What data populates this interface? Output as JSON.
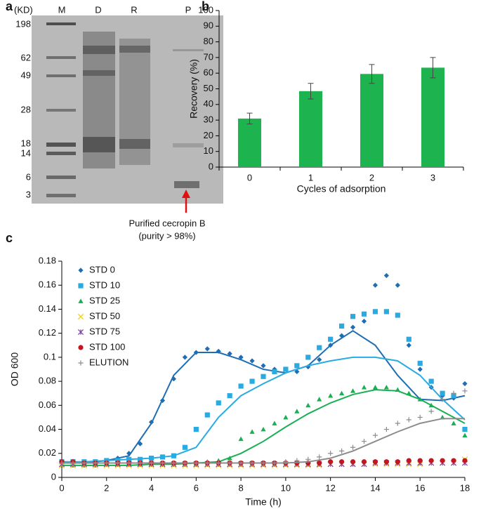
{
  "gel": {
    "panel_label": "a",
    "unit": "(KD)",
    "lanes": [
      "M",
      "D",
      "R",
      "P"
    ],
    "markers": [
      198,
      62,
      49,
      28,
      18,
      14,
      6,
      3
    ],
    "annotation": [
      "Purified cecropin B",
      "(purity > 98%)"
    ]
  },
  "chart_data": [
    {
      "type": "bar",
      "panel_label": "b",
      "xlabel": "Cycles of adsorption",
      "ylabel": "Recovery (%)",
      "categories": [
        "0",
        "1",
        "2",
        "3"
      ],
      "values": [
        31,
        48.5,
        59.5,
        63.5
      ],
      "errors": [
        3.5,
        5,
        6,
        6.5
      ],
      "color": "#1db34f",
      "ylim": [
        0,
        100
      ],
      "yticks": [
        0,
        10,
        20,
        30,
        40,
        50,
        60,
        70,
        80,
        90,
        100
      ]
    },
    {
      "type": "scatter",
      "panel_label": "c",
      "xlabel": "Time (h)",
      "ylabel": "OD 600",
      "xlim": [
        0,
        18
      ],
      "xticks": [
        0,
        2,
        4,
        6,
        8,
        10,
        12,
        14,
        16,
        18
      ],
      "ylim": [
        0,
        0.18
      ],
      "yticks": [
        0,
        0.02,
        0.04,
        0.06,
        0.08,
        0.1,
        0.12,
        0.14,
        0.16,
        0.18
      ],
      "legend": "upper left",
      "x": [
        0,
        0.5,
        1,
        1.5,
        2,
        2.5,
        3,
        3.5,
        4,
        4.5,
        5,
        5.5,
        6,
        6.5,
        7,
        7.5,
        8,
        8.5,
        9,
        9.5,
        10,
        10.5,
        11,
        11.5,
        12,
        12.5,
        13,
        13.5,
        14,
        14.5,
        15,
        15.5,
        16,
        16.5,
        17,
        17.5,
        18
      ],
      "trend_x": [
        0,
        1,
        2,
        3,
        4,
        5,
        6,
        7,
        8,
        9,
        10,
        11,
        12,
        13,
        14,
        15,
        16,
        17,
        18
      ],
      "series": [
        {
          "name": "STD 0",
          "color": "#1f6db3",
          "marker": "diamond",
          "values": [
            0.012,
            0.012,
            0.012,
            0.013,
            0.014,
            0.016,
            0.02,
            0.028,
            0.046,
            0.064,
            0.082,
            0.1,
            0.104,
            0.107,
            0.105,
            0.103,
            0.1,
            0.097,
            0.093,
            0.09,
            0.09,
            0.088,
            0.092,
            0.098,
            0.11,
            0.118,
            0.125,
            0.13,
            0.16,
            0.168,
            0.16,
            0.11,
            0.09,
            0.075,
            0.068,
            0.066,
            0.078
          ],
          "trend": [
            0.012,
            0.012,
            0.014,
            0.018,
            0.045,
            0.085,
            0.104,
            0.104,
            0.098,
            0.09,
            0.087,
            0.093,
            0.11,
            0.122,
            0.11,
            0.085,
            0.065,
            0.064,
            0.068
          ]
        },
        {
          "name": "STD 10",
          "color": "#29abe2",
          "marker": "square",
          "values": [
            0.013,
            0.013,
            0.013,
            0.013,
            0.014,
            0.014,
            0.015,
            0.015,
            0.016,
            0.017,
            0.018,
            0.025,
            0.04,
            0.052,
            0.062,
            0.068,
            0.076,
            0.08,
            0.084,
            0.088,
            0.09,
            0.093,
            0.1,
            0.108,
            0.115,
            0.126,
            0.134,
            0.136,
            0.138,
            0.138,
            0.135,
            0.115,
            0.095,
            0.08,
            0.07,
            0.068,
            0.04
          ],
          "trend": [
            0.013,
            0.013,
            0.014,
            0.015,
            0.016,
            0.018,
            0.025,
            0.05,
            0.068,
            0.078,
            0.087,
            0.093,
            0.097,
            0.1,
            0.1,
            0.097,
            0.085,
            0.065,
            0.048
          ]
        },
        {
          "name": "STD 25",
          "color": "#1aaf54",
          "marker": "triangle",
          "values": [
            0.01,
            0.01,
            0.01,
            0.01,
            0.011,
            0.011,
            0.011,
            0.011,
            0.011,
            0.011,
            0.012,
            0.012,
            0.012,
            0.013,
            0.014,
            0.016,
            0.032,
            0.038,
            0.04,
            0.045,
            0.05,
            0.055,
            0.06,
            0.065,
            0.068,
            0.07,
            0.072,
            0.075,
            0.075,
            0.075,
            0.073,
            0.07,
            0.065,
            0.06,
            0.05,
            0.045,
            0.035
          ],
          "trend": [
            0.01,
            0.01,
            0.01,
            0.01,
            0.011,
            0.011,
            0.012,
            0.013,
            0.02,
            0.03,
            0.042,
            0.053,
            0.062,
            0.069,
            0.073,
            0.072,
            0.065,
            0.055,
            0.045
          ]
        },
        {
          "name": "STD 50",
          "color": "#f2d216",
          "marker": "x",
          "values": [
            0.01,
            0.01,
            0.01,
            0.01,
            0.01,
            0.01,
            0.01,
            0.01,
            0.01,
            0.01,
            0.01,
            0.01,
            0.01,
            0.01,
            0.01,
            0.01,
            0.01,
            0.01,
            0.01,
            0.01,
            0.01,
            0.01,
            0.01,
            0.01,
            0.011,
            0.011,
            0.011,
            0.011,
            0.011,
            0.011,
            0.011,
            0.011,
            0.011,
            0.012,
            0.012,
            0.012,
            0.015
          ]
        },
        {
          "name": "STD 75",
          "color": "#7a3fa0",
          "marker": "star",
          "values": [
            0.011,
            0.011,
            0.011,
            0.011,
            0.011,
            0.011,
            0.011,
            0.011,
            0.011,
            0.011,
            0.011,
            0.011,
            0.011,
            0.011,
            0.011,
            0.011,
            0.011,
            0.011,
            0.011,
            0.011,
            0.011,
            0.011,
            0.011,
            0.011,
            0.011,
            0.011,
            0.011,
            0.011,
            0.012,
            0.012,
            0.012,
            0.012,
            0.012,
            0.012,
            0.012,
            0.012,
            0.012
          ]
        },
        {
          "name": "STD 100",
          "color": "#c8141e",
          "marker": "circle",
          "values": [
            0.013,
            0.013,
            0.012,
            0.012,
            0.012,
            0.012,
            0.012,
            0.012,
            0.012,
            0.012,
            0.012,
            0.012,
            0.012,
            0.012,
            0.012,
            0.012,
            0.012,
            0.012,
            0.012,
            0.012,
            0.012,
            0.012,
            0.012,
            0.012,
            0.013,
            0.013,
            0.013,
            0.013,
            0.013,
            0.013,
            0.013,
            0.014,
            0.014,
            0.014,
            0.014,
            0.014,
            0.014
          ]
        },
        {
          "name": "ELUTION",
          "color": "#8c8c8c",
          "marker": "plus",
          "values": [
            0.012,
            0.012,
            0.012,
            0.012,
            0.012,
            0.012,
            0.012,
            0.012,
            0.012,
            0.012,
            0.012,
            0.012,
            0.012,
            0.012,
            0.012,
            0.012,
            0.012,
            0.012,
            0.012,
            0.012,
            0.013,
            0.014,
            0.015,
            0.017,
            0.02,
            0.022,
            0.025,
            0.03,
            0.035,
            0.04,
            0.045,
            0.048,
            0.05,
            0.055,
            0.065,
            0.07,
            0.072
          ],
          "trend": [
            0.012,
            0.012,
            0.012,
            0.012,
            0.012,
            0.012,
            0.012,
            0.012,
            0.012,
            0.012,
            0.012,
            0.013,
            0.016,
            0.022,
            0.03,
            0.038,
            0.045,
            0.049,
            0.049
          ]
        }
      ]
    }
  ]
}
